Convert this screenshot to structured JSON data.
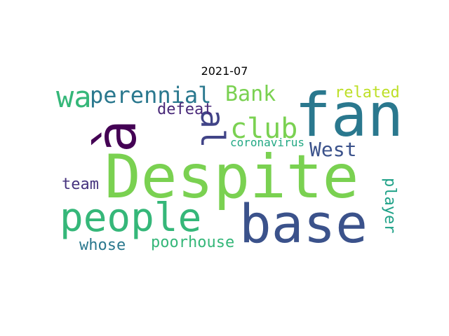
{
  "title": "2021-07",
  "words": {
    "despite": {
      "text": "Despite",
      "color": "#7ad151"
    },
    "fan": {
      "text": "fan",
      "color": "#2a788e"
    },
    "base": {
      "text": "base",
      "color": "#3b528b"
    },
    "people": {
      "text": "people",
      "color": "#35b779"
    },
    "a_big": {
      "text": "à",
      "color": "#440154"
    },
    "wa": {
      "text": "wa",
      "color": "#35b779"
    },
    "perennial": {
      "text": "perennial",
      "color": "#2a788e"
    },
    "bank": {
      "text": "Bank",
      "color": "#7ad151"
    },
    "club": {
      "text": "club",
      "color": "#7ad151"
    },
    "al": {
      "text": "al",
      "color": "#414487"
    },
    "related": {
      "text": "related",
      "color": "#bddf26"
    },
    "defeat": {
      "text": "defeat",
      "color": "#482878"
    },
    "west": {
      "text": "West",
      "color": "#3b528b"
    },
    "coronavirus": {
      "text": "coronavirus",
      "color": "#22a884"
    },
    "team": {
      "text": "team",
      "color": "#46337e"
    },
    "player": {
      "text": "player",
      "color": "#1fa187"
    },
    "whose": {
      "text": "whose",
      "color": "#2a788e"
    },
    "poorhouse": {
      "text": "poorhouse",
      "color": "#35b779"
    }
  }
}
